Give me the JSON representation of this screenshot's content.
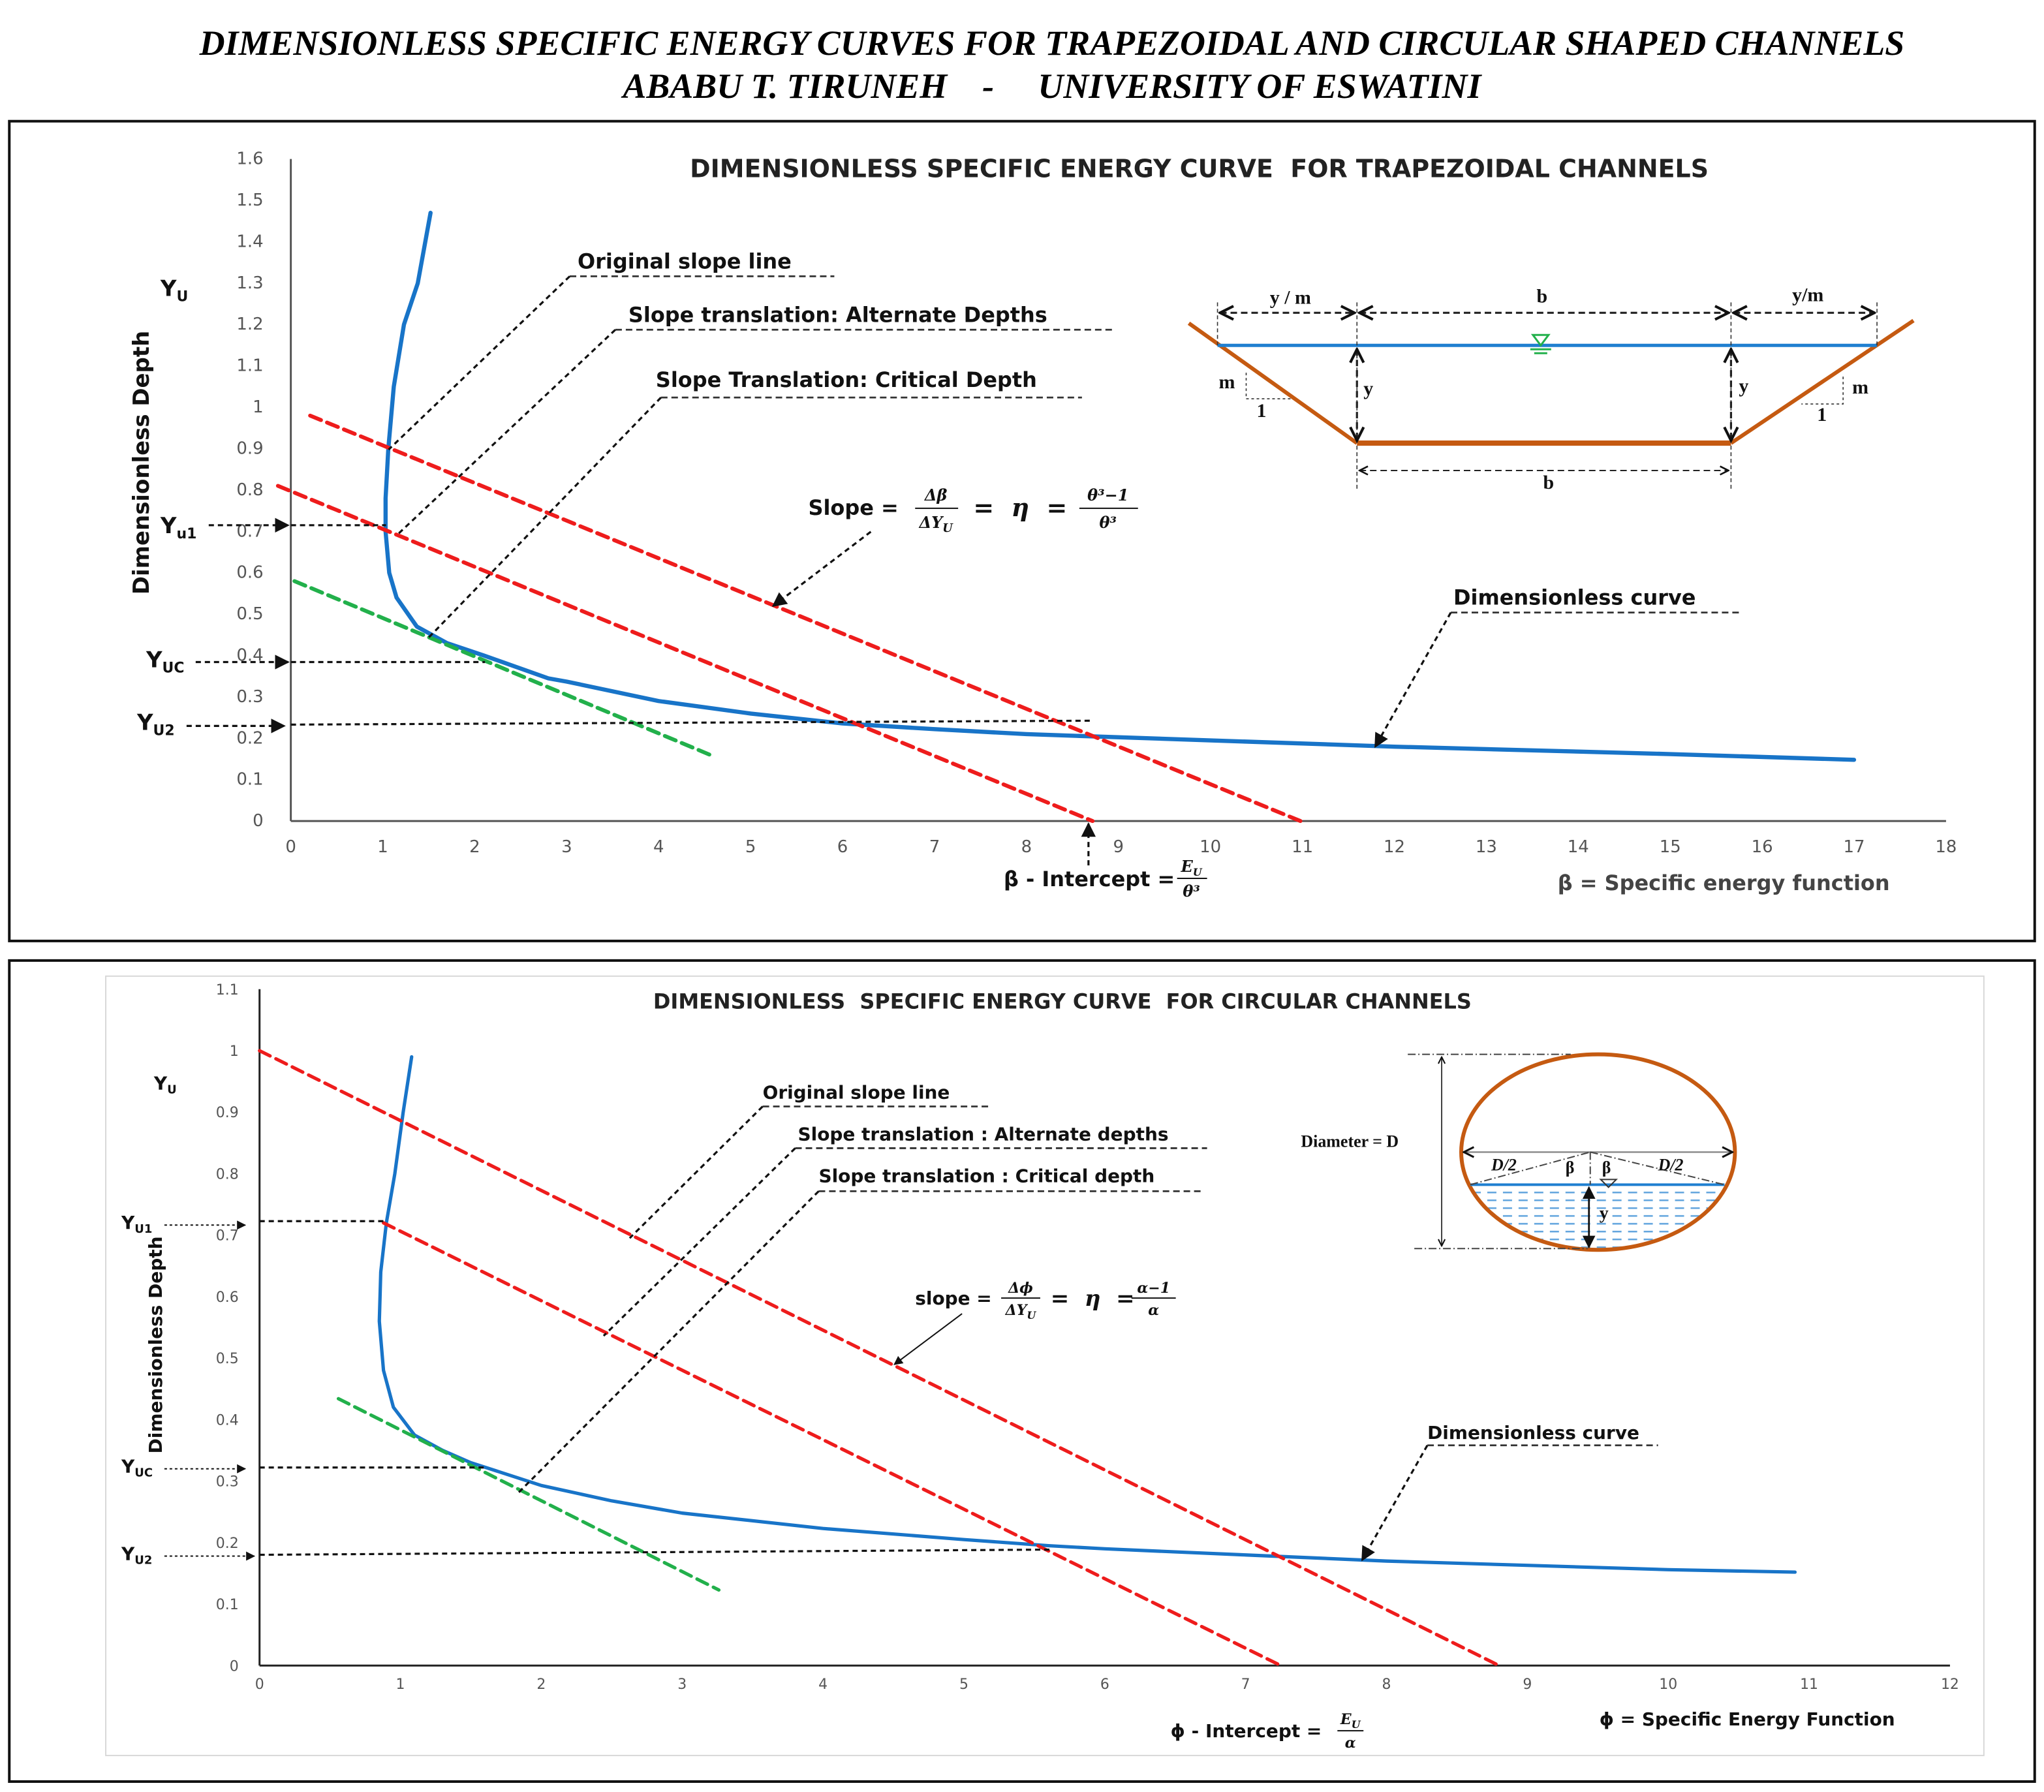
{
  "header": {
    "title": "DIMENSIONLESS SPECIFIC ENERGY CURVES FOR TRAPEZOIDAL AND CIRCULAR SHAPED CHANNELS",
    "author_line": "ABABU T. TIRUNEH    -     UNIVERSITY OF ESWATINI"
  },
  "colors": {
    "curve": "#1874c8",
    "slope_line": "#ee1c1c",
    "critical_line": "#22b04b",
    "channel_wall": "#c55a11",
    "water": "#1f7fd0"
  },
  "chart_data": [
    {
      "type": "line",
      "title": "DIMENSIONLESS SPECIFIC ENERGY CURVE  FOR TRAPEZOIDAL CHANNELS",
      "ylabel": "Dimensionless Depth",
      "xlabel": "β = Specific energy function",
      "xlim": [
        0,
        18
      ],
      "ylim": [
        0,
        1.6
      ],
      "xticks": [
        "0",
        "1",
        "2",
        "3",
        "4",
        "5",
        "6",
        "7",
        "8",
        "9",
        "10",
        "11",
        "12",
        "13",
        "14",
        "15",
        "16",
        "17",
        "18"
      ],
      "yticks": [
        "0",
        "0.1",
        "0.2",
        "0.3",
        "0.4",
        "0.5",
        "0.6",
        "0.7",
        "0.8",
        "0.9",
        "1",
        "1.1",
        "1.2",
        "1.3",
        "1.4",
        "1.5",
        "1.6"
      ],
      "grid": false,
      "series": [
        {
          "role": "dimensionless-curve",
          "color": "#1874c8",
          "points": [
            [
              1.52,
              1.47
            ],
            [
              1.38,
              1.3
            ],
            [
              1.23,
              1.2
            ],
            [
              1.12,
              1.05
            ],
            [
              1.06,
              0.9
            ],
            [
              1.03,
              0.78
            ],
            [
              1.03,
              0.7
            ],
            [
              1.07,
              0.6
            ],
            [
              1.15,
              0.54
            ],
            [
              1.37,
              0.47
            ],
            [
              1.7,
              0.43
            ],
            [
              2.1,
              0.4
            ],
            [
              2.8,
              0.345
            ],
            [
              3,
              0.337
            ],
            [
              4,
              0.29
            ],
            [
              5,
              0.26
            ],
            [
              6,
              0.236
            ],
            [
              7,
              0.222
            ],
            [
              8,
              0.21
            ],
            [
              10,
              0.195
            ],
            [
              12,
              0.18
            ],
            [
              14,
              0.168
            ],
            [
              15,
              0.162
            ],
            [
              17,
              0.148
            ]
          ]
        },
        {
          "role": "original-slope-line",
          "color": "#ee1c1c",
          "points": [
            [
              0.21,
              0.98
            ],
            [
              10.98,
              0
            ]
          ]
        },
        {
          "role": "alternate-depths-line",
          "color": "#ee1c1c",
          "points": [
            [
              -0.14,
              0.81
            ],
            [
              8.72,
              0
            ]
          ]
        },
        {
          "role": "critical-depth-line",
          "color": "#22b04b",
          "points": [
            [
              0.04,
              0.58
            ],
            [
              4.56,
              0.16
            ]
          ]
        }
      ],
      "levels": {
        "Yu1": 0.72,
        "Yuc": 0.39,
        "Yu2": 0.23
      },
      "annotations": {
        "yu": "Y",
        "yu_sub": "U",
        "yu1": "Y",
        "yu1_sub": "u1",
        "yuc": "Y",
        "yuc_sub": "UC",
        "yu2": "Y",
        "yu2_sub": "U2",
        "original": "Original slope line",
        "alternate": "Slope translation: Alternate Depths",
        "critical": "Slope Translation: Critical Depth",
        "curve": "Dimensionless curve",
        "slope_word": "Slope = ",
        "slope_num": "Δβ",
        "slope_den": "ΔY",
        "slope_den_sub": "U",
        "eta": " =  η  = ",
        "rhs_num": "θ³−1",
        "rhs_den": "θ³",
        "intercept": "β - Intercept = ",
        "int_num": "E",
        "int_num_sub": "U",
        "int_den": "θ³"
      },
      "diagram": {
        "ym_left": "y / m",
        "b_top": "b",
        "ym_right": "y/m",
        "y_left": "y",
        "y_right": "y",
        "m_left": "m",
        "one_left": "1",
        "m_right": "m",
        "one_right": "1",
        "b_bottom": "b"
      }
    },
    {
      "type": "line",
      "title": "DIMENSIONLESS  SPECIFIC ENERGY CURVE  FOR CIRCULAR CHANNELS",
      "ylabel": "Dimensionless Depth",
      "xlabel": "ϕ = Specific Energy Function",
      "xlim": [
        0,
        12
      ],
      "ylim": [
        0,
        1.1
      ],
      "xticks": [
        "0",
        "1",
        "2",
        "3",
        "4",
        "5",
        "6",
        "7",
        "8",
        "9",
        "10",
        "11",
        "12"
      ],
      "yticks": [
        "0",
        "0.1",
        "0.2",
        "0.3",
        "0.4",
        "0.5",
        "0.6",
        "0.7",
        "0.8",
        "0.9",
        "1",
        "1.1"
      ],
      "grid": false,
      "series": [
        {
          "role": "dimensionless-curve",
          "color": "#1874c8",
          "points": [
            [
              1.08,
              0.99
            ],
            [
              1.02,
              0.9
            ],
            [
              0.96,
              0.8
            ],
            [
              0.9,
              0.72
            ],
            [
              0.86,
              0.64
            ],
            [
              0.85,
              0.56
            ],
            [
              0.88,
              0.48
            ],
            [
              0.95,
              0.42
            ],
            [
              1.1,
              0.375
            ],
            [
              1.3,
              0.35
            ],
            [
              1.5,
              0.33
            ],
            [
              2,
              0.293
            ],
            [
              2.5,
              0.268
            ],
            [
              3,
              0.248
            ],
            [
              4,
              0.223
            ],
            [
              5,
              0.205
            ],
            [
              5.6,
              0.195
            ],
            [
              6,
              0.19
            ],
            [
              7,
              0.18
            ],
            [
              8,
              0.17
            ],
            [
              9,
              0.163
            ],
            [
              10,
              0.156
            ],
            [
              10.9,
              0.152
            ]
          ]
        },
        {
          "role": "original-slope-line",
          "color": "#ee1c1c",
          "points": [
            [
              0,
              1.0
            ],
            [
              8.8,
              0
            ]
          ]
        },
        {
          "role": "alternate-depths-line",
          "color": "#ee1c1c",
          "points": [
            [
              0.88,
              0.72
            ],
            [
              7.25,
              0
            ]
          ]
        },
        {
          "role": "critical-depth-line",
          "color": "#22b04b",
          "points": [
            [
              0.56,
              0.434
            ],
            [
              3.26,
              0.123
            ]
          ]
        }
      ],
      "levels": {
        "Yu1": 0.72,
        "Yuc": 0.32,
        "Yu2": 0.18
      },
      "annotations": {
        "yu": "Y",
        "yu_sub": "U",
        "yu1": "Y",
        "yu1_sub": "U1",
        "yuc": "Y",
        "yuc_sub": "UC",
        "yu2": "Y",
        "yu2_sub": "U2",
        "original": "Original slope line",
        "alternate": "Slope translation : Alternate depths",
        "critical": "Slope translation : Critical depth",
        "curve": "Dimensionless curve",
        "slope_word": "slope = ",
        "slope_num": "Δϕ",
        "slope_den": "ΔY",
        "slope_den_sub": "U",
        "eta": " =  η  = ",
        "rhs_num": "α−1",
        "rhs_den": "α",
        "intercept": "ϕ - Intercept = ",
        "int_num": "E",
        "int_num_sub": "U",
        "int_den": "α"
      },
      "diagram": {
        "diameter": "Diameter = D",
        "d2_left": "D/2",
        "d2_right": "D/2",
        "beta_left": "β",
        "beta_right": "β",
        "y": "y"
      }
    }
  ]
}
